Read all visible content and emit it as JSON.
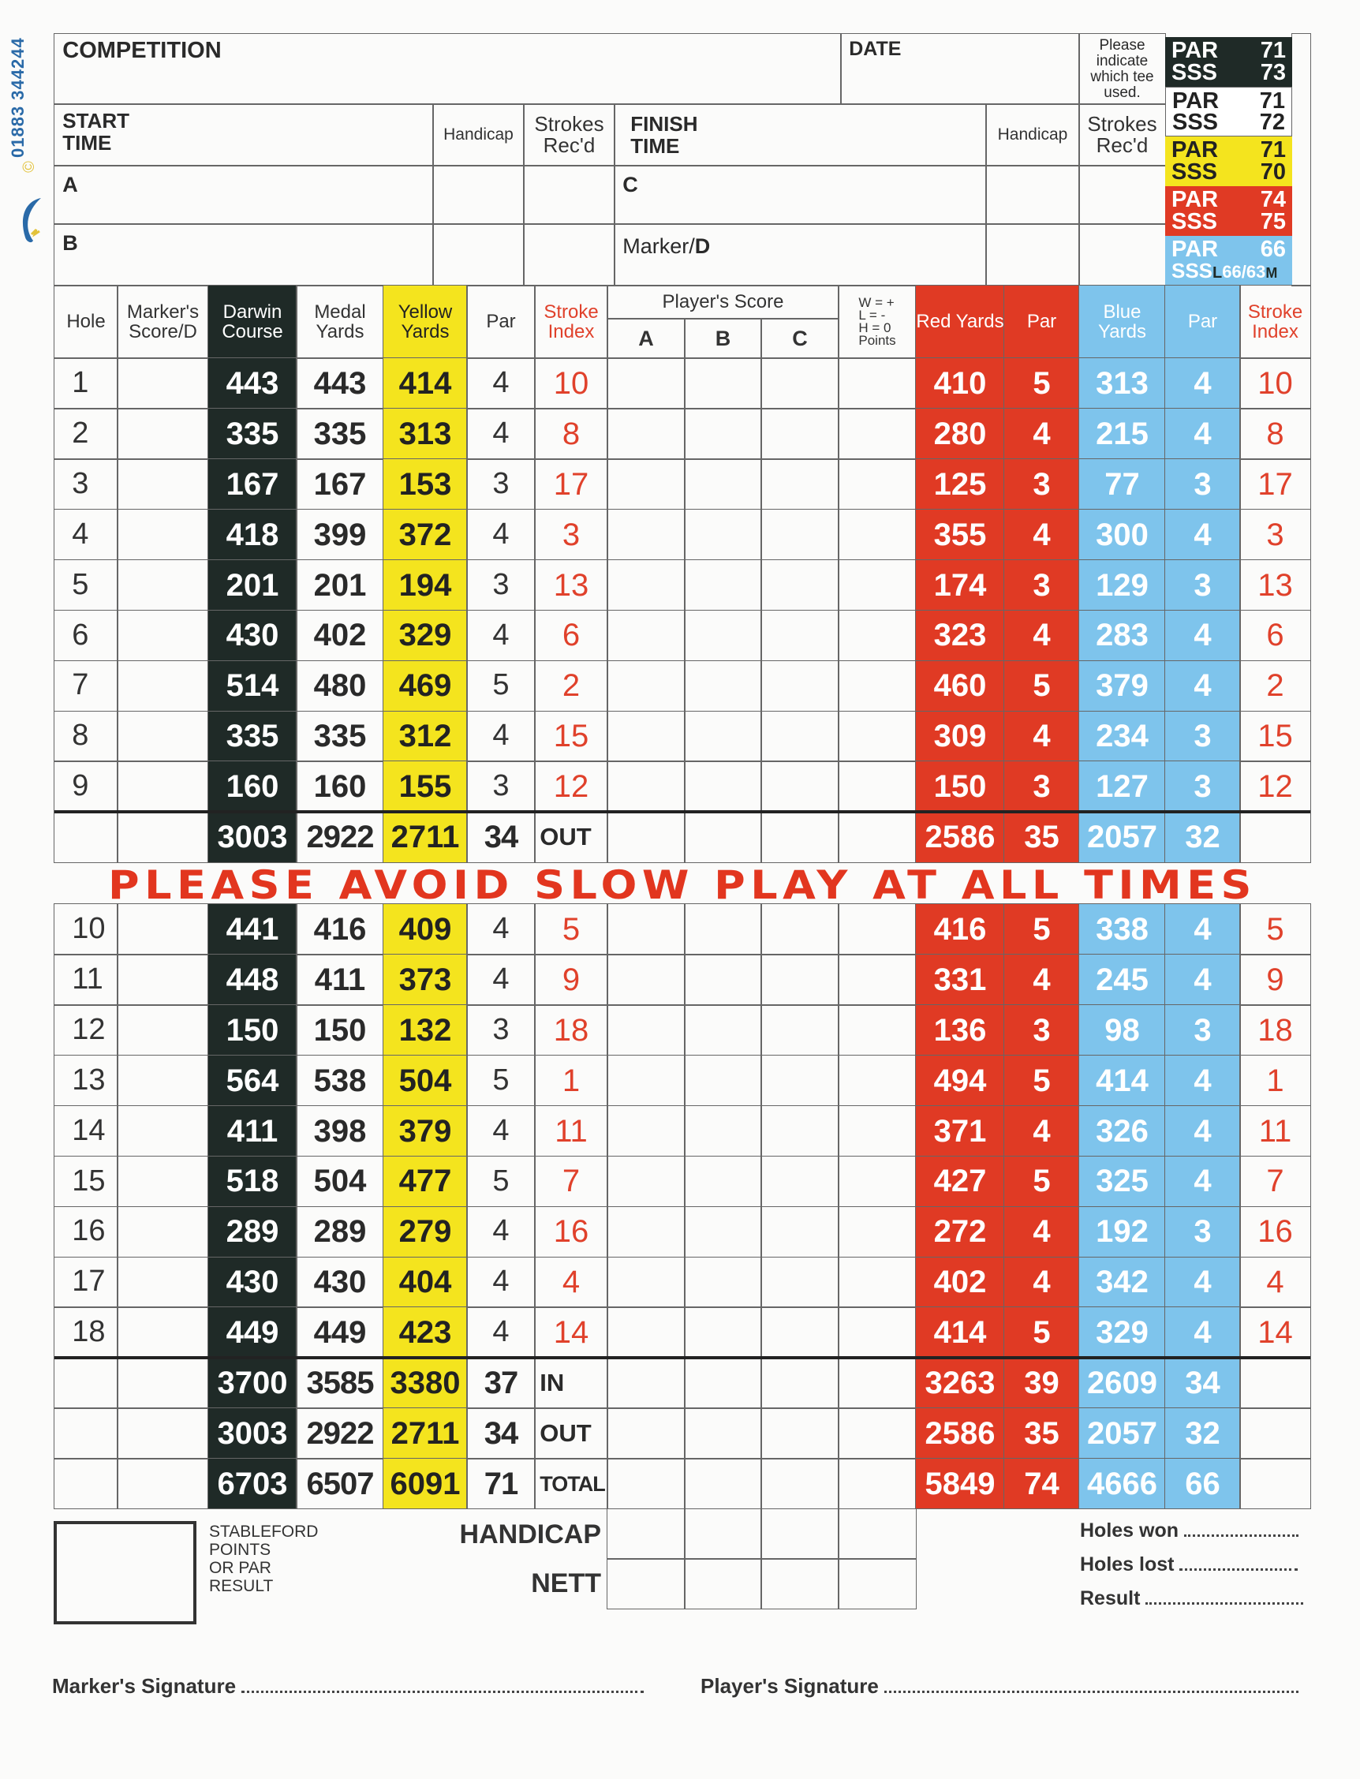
{
  "side": {
    "phone": "01883 344244",
    "copyright": "©"
  },
  "top": {
    "competition": "COMPETITION",
    "date": "DATE",
    "tee_note": "Please indicate which tee used.",
    "start_time": "START TIME",
    "finish_time": "FINISH TIME",
    "handicap": "Handicap",
    "strokes_recd": "Strokes Rec'd",
    "player_a": "A",
    "player_b": "B",
    "player_c": "C",
    "marker_prefix": "Marker/",
    "marker_d": "D"
  },
  "tees": [
    {
      "par_label": "PAR",
      "par": "71",
      "sss_label": "SSS",
      "sss": "73",
      "color": "#1f2a27"
    },
    {
      "par_label": "PAR",
      "par": "71",
      "sss_label": "SSS",
      "sss": "72",
      "color": "#ffffff"
    },
    {
      "par_label": "PAR",
      "par": "71",
      "sss_label": "SSS",
      "sss": "70",
      "color": "#f4e41e"
    },
    {
      "par_label": "PAR",
      "par": "74",
      "sss_label": "SSS",
      "sss": "75",
      "color": "#e03a24"
    },
    {
      "par_label": "PAR",
      "par": "66",
      "sss_label": "SSS",
      "sss_l": "L",
      "sss": "66/63",
      "sss_m": "M",
      "color": "#7ec4ec"
    }
  ],
  "headers": {
    "hole": "Hole",
    "marker": "Marker's Score/D",
    "darwin": "Darwin Course",
    "medal": "Medal Yards",
    "yellow": "Yellow Yards",
    "par": "Par",
    "stroke_index": "Stroke Index",
    "players_score": "Player's Score",
    "a": "A",
    "b": "B",
    "c": "C",
    "points": "W = +\nL = -\nH = 0\nPoints",
    "red": "Red Yards",
    "red_par": "Par",
    "blue": "Blue Yards",
    "blue_par": "Par",
    "blue_si": "Stroke Index"
  },
  "holes": [
    {
      "hole": "1",
      "darwin": "443",
      "medal": "443",
      "yellow": "414",
      "par": "4",
      "si": "10",
      "red": "410",
      "red_par": "5",
      "blue": "313",
      "blue_par": "4",
      "blue_si": "10"
    },
    {
      "hole": "2",
      "darwin": "335",
      "medal": "335",
      "yellow": "313",
      "par": "4",
      "si": "8",
      "red": "280",
      "red_par": "4",
      "blue": "215",
      "blue_par": "4",
      "blue_si": "8"
    },
    {
      "hole": "3",
      "darwin": "167",
      "medal": "167",
      "yellow": "153",
      "par": "3",
      "si": "17",
      "red": "125",
      "red_par": "3",
      "blue": "77",
      "blue_par": "3",
      "blue_si": "17"
    },
    {
      "hole": "4",
      "darwin": "418",
      "medal": "399",
      "yellow": "372",
      "par": "4",
      "si": "3",
      "red": "355",
      "red_par": "4",
      "blue": "300",
      "blue_par": "4",
      "blue_si": "3"
    },
    {
      "hole": "5",
      "darwin": "201",
      "medal": "201",
      "yellow": "194",
      "par": "3",
      "si": "13",
      "red": "174",
      "red_par": "3",
      "blue": "129",
      "blue_par": "3",
      "blue_si": "13"
    },
    {
      "hole": "6",
      "darwin": "430",
      "medal": "402",
      "yellow": "329",
      "par": "4",
      "si": "6",
      "red": "323",
      "red_par": "4",
      "blue": "283",
      "blue_par": "4",
      "blue_si": "6"
    },
    {
      "hole": "7",
      "darwin": "514",
      "medal": "480",
      "yellow": "469",
      "par": "5",
      "si": "2",
      "red": "460",
      "red_par": "5",
      "blue": "379",
      "blue_par": "4",
      "blue_si": "2"
    },
    {
      "hole": "8",
      "darwin": "335",
      "medal": "335",
      "yellow": "312",
      "par": "4",
      "si": "15",
      "red": "309",
      "red_par": "4",
      "blue": "234",
      "blue_par": "3",
      "blue_si": "15"
    },
    {
      "hole": "9",
      "darwin": "160",
      "medal": "160",
      "yellow": "155",
      "par": "3",
      "si": "12",
      "red": "150",
      "red_par": "3",
      "blue": "127",
      "blue_par": "3",
      "blue_si": "12"
    },
    {
      "hole": "10",
      "darwin": "441",
      "medal": "416",
      "yellow": "409",
      "par": "4",
      "si": "5",
      "red": "416",
      "red_par": "5",
      "blue": "338",
      "blue_par": "4",
      "blue_si": "5"
    },
    {
      "hole": "11",
      "darwin": "448",
      "medal": "411",
      "yellow": "373",
      "par": "4",
      "si": "9",
      "red": "331",
      "red_par": "4",
      "blue": "245",
      "blue_par": "4",
      "blue_si": "9"
    },
    {
      "hole": "12",
      "darwin": "150",
      "medal": "150",
      "yellow": "132",
      "par": "3",
      "si": "18",
      "red": "136",
      "red_par": "3",
      "blue": "98",
      "blue_par": "3",
      "blue_si": "18"
    },
    {
      "hole": "13",
      "darwin": "564",
      "medal": "538",
      "yellow": "504",
      "par": "5",
      "si": "1",
      "red": "494",
      "red_par": "5",
      "blue": "414",
      "blue_par": "4",
      "blue_si": "1"
    },
    {
      "hole": "14",
      "darwin": "411",
      "medal": "398",
      "yellow": "379",
      "par": "4",
      "si": "11",
      "red": "371",
      "red_par": "4",
      "blue": "326",
      "blue_par": "4",
      "blue_si": "11"
    },
    {
      "hole": "15",
      "darwin": "518",
      "medal": "504",
      "yellow": "477",
      "par": "5",
      "si": "7",
      "red": "427",
      "red_par": "5",
      "blue": "325",
      "blue_par": "4",
      "blue_si": "7"
    },
    {
      "hole": "16",
      "darwin": "289",
      "medal": "289",
      "yellow": "279",
      "par": "4",
      "si": "16",
      "red": "272",
      "red_par": "4",
      "blue": "192",
      "blue_par": "3",
      "blue_si": "16"
    },
    {
      "hole": "17",
      "darwin": "430",
      "medal": "430",
      "yellow": "404",
      "par": "4",
      "si": "4",
      "red": "402",
      "red_par": "4",
      "blue": "342",
      "blue_par": "4",
      "blue_si": "4"
    },
    {
      "hole": "18",
      "darwin": "449",
      "medal": "449",
      "yellow": "423",
      "par": "4",
      "si": "14",
      "red": "414",
      "red_par": "5",
      "blue": "329",
      "blue_par": "4",
      "blue_si": "14"
    }
  ],
  "totals": {
    "out_front": {
      "label": "OUT",
      "darwin": "3003",
      "medal": "2922",
      "yellow": "2711",
      "par": "34",
      "red": "2586",
      "red_par": "35",
      "blue": "2057",
      "blue_par": "32"
    },
    "in": {
      "label": "IN",
      "darwin": "3700",
      "medal": "3585",
      "yellow": "3380",
      "par": "37",
      "red": "3263",
      "red_par": "39",
      "blue": "2609",
      "blue_par": "34"
    },
    "out": {
      "label": "OUT",
      "darwin": "3003",
      "medal": "2922",
      "yellow": "2711",
      "par": "34",
      "red": "2586",
      "red_par": "35",
      "blue": "2057",
      "blue_par": "32"
    },
    "total": {
      "label": "TOTAL",
      "darwin": "6703",
      "medal": "6507",
      "yellow": "6091",
      "par": "71",
      "red": "5849",
      "red_par": "74",
      "blue": "4666",
      "blue_par": "66"
    }
  },
  "banner": "PLEASE AVOID SLOW PLAY AT ALL TIMES",
  "bottom": {
    "stableford": "STABLEFORD\nPOINTS\nOR PAR\nRESULT",
    "handicap": "HANDICAP",
    "nett": "NETT",
    "holes_won": "Holes won",
    "holes_lost": "Holes lost",
    "result": "Result",
    "marker_signature": "Marker's Signature",
    "player_signature": "Player's Signature"
  }
}
